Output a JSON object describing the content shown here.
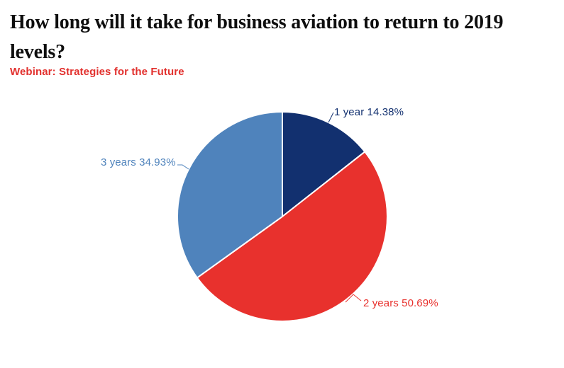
{
  "header": {
    "title_lines": [
      "How long will it take for business aviation to return to 2019",
      "levels?"
    ],
    "subtitle": "Webinar: Strategies for the Future",
    "title_color": "#0e0e0e",
    "subtitle_color": "#e2312e"
  },
  "chart_data": {
    "type": "pie",
    "title": "How long will it take for business aviation to return to 2019 levels?",
    "subtitle": "Webinar: Strategies for the Future",
    "categories": [
      "1 year",
      "2 years",
      "3 years"
    ],
    "values": [
      14.38,
      50.69,
      34.93
    ],
    "unit": "%",
    "legend": "none",
    "labels_position": "outside",
    "start_angle_deg": 0,
    "direction": "clockwise",
    "slices": [
      {
        "label": "1 year",
        "value": 14.38,
        "display": "1 year 14.38%",
        "color": "#12306f"
      },
      {
        "label": "2 years",
        "value": 50.69,
        "display": "2 years 50.69%",
        "color": "#e8312d"
      },
      {
        "label": "3 years",
        "value": 34.93,
        "display": "3 years 34.93%",
        "color": "#4f83bc"
      }
    ],
    "layout": {
      "center": [
        398,
        306
      ],
      "radius": 148,
      "slice_border_color": "#ffffff",
      "slice_border_width": 2
    }
  }
}
